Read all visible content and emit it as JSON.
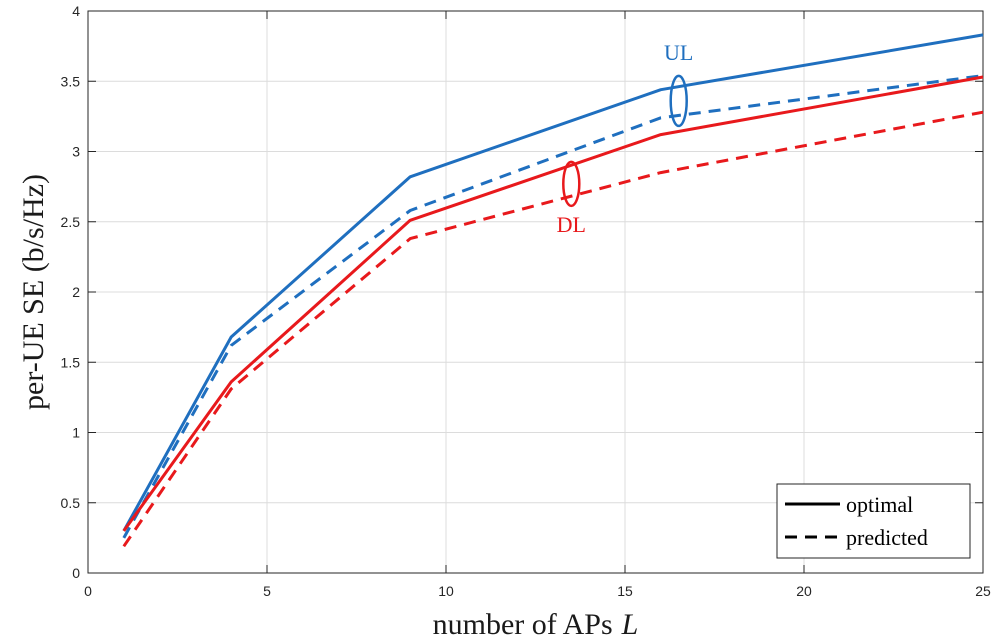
{
  "chart_data": {
    "type": "line",
    "xlabel_text": "number of APs",
    "xlabel_var": "L",
    "ylabel": "per-UE SE (b/s/Hz)",
    "xlim": [
      0,
      25
    ],
    "ylim": [
      0,
      4
    ],
    "xticks": [
      0,
      5,
      10,
      15,
      20,
      25
    ],
    "yticks": [
      0,
      0.5,
      1,
      1.5,
      2,
      2.5,
      3,
      3.5,
      4
    ],
    "grid": true,
    "legend_position": "bottom-right",
    "legend": [
      {
        "label": "optimal",
        "style": "solid"
      },
      {
        "label": "predicted",
        "style": "dashed"
      }
    ],
    "series": [
      {
        "name": "UL optimal",
        "color": "#1f6fbf",
        "style": "solid",
        "x": [
          1,
          4,
          9,
          16,
          25
        ],
        "y": [
          0.3,
          1.68,
          2.82,
          3.44,
          3.83
        ]
      },
      {
        "name": "UL predicted",
        "color": "#1f6fbf",
        "style": "dashed",
        "x": [
          1,
          4,
          9,
          16,
          25
        ],
        "y": [
          0.25,
          1.62,
          2.58,
          3.24,
          3.54
        ]
      },
      {
        "name": "DL optimal",
        "color": "#e8191c",
        "style": "solid",
        "x": [
          1,
          4,
          9,
          16,
          25
        ],
        "y": [
          0.3,
          1.36,
          2.51,
          3.12,
          3.53
        ]
      },
      {
        "name": "DL predicted",
        "color": "#e8191c",
        "style": "dashed",
        "x": [
          1,
          4,
          9,
          16,
          25
        ],
        "y": [
          0.19,
          1.31,
          2.38,
          2.85,
          3.28
        ]
      }
    ],
    "annotations": [
      {
        "text": "UL",
        "color": "#1f6fbf",
        "ellipse_center": [
          16.5,
          3.36
        ]
      },
      {
        "text": "DL",
        "color": "#e8191c",
        "ellipse_center": [
          13.5,
          2.77
        ]
      }
    ]
  }
}
